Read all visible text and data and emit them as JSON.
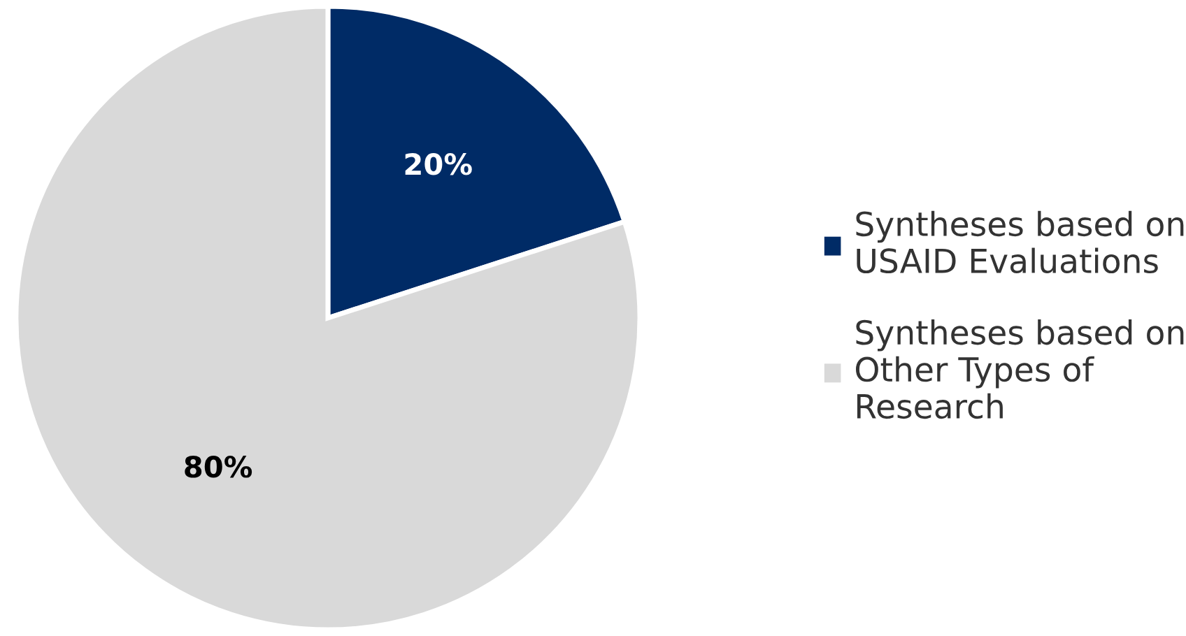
{
  "chart_data": {
    "type": "pie",
    "categories": [
      "Syntheses based on\nUSAID Evaluations",
      "Syntheses based on\nOther Types of\nResearch"
    ],
    "values": [
      20,
      80
    ],
    "value_labels": [
      "20%",
      "80%"
    ],
    "colors": [
      "#002b66",
      "#d9d9d9"
    ],
    "legend": "right"
  }
}
